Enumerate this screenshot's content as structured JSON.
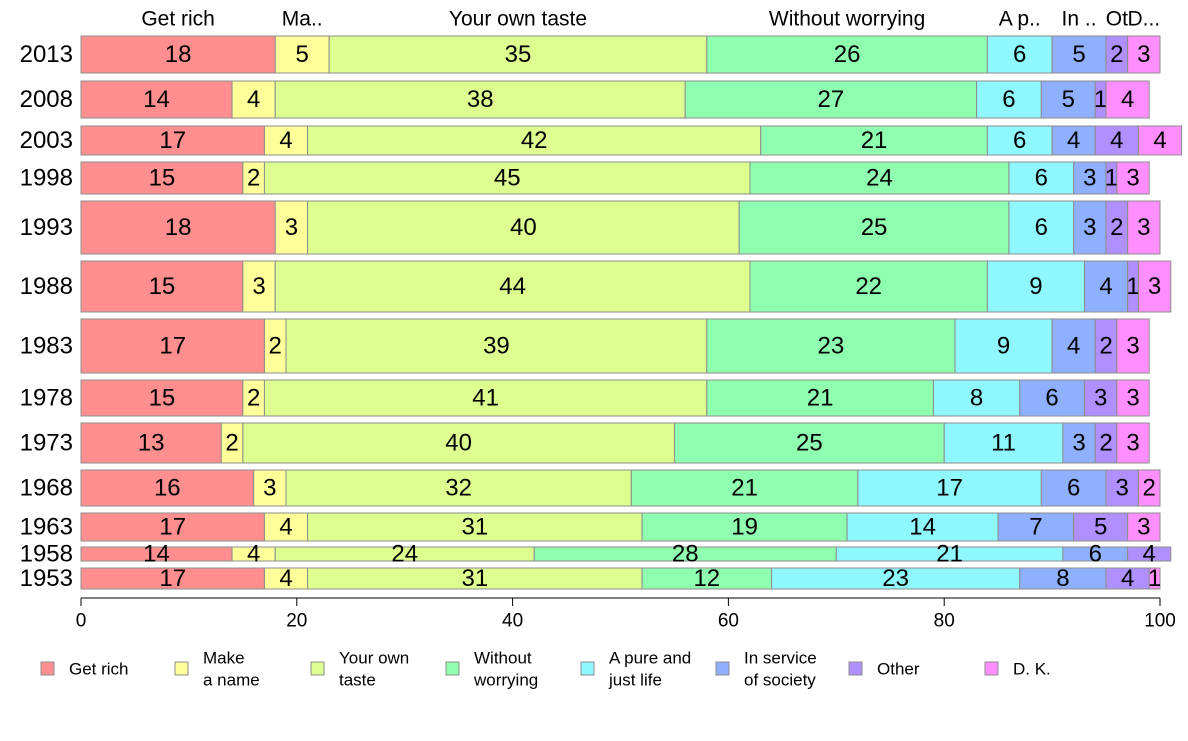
{
  "chart_data": {
    "type": "bar",
    "orientation": "horizontal",
    "stacked": true,
    "categories": [
      "2013",
      "2008",
      "2003",
      "1998",
      "1993",
      "1988",
      "1983",
      "1978",
      "1973",
      "1968",
      "1963",
      "1958",
      "1953"
    ],
    "top_labels": [
      "Get rich",
      "Ma..",
      "Your own taste",
      "Without worrying",
      "A p..",
      "In ..",
      "Ot",
      "D..."
    ],
    "xlim": [
      0,
      100
    ],
    "xticks": [
      "0",
      "20",
      "40",
      "60",
      "80",
      "100"
    ],
    "legend_placement": "bottom",
    "series": [
      {
        "name": "Get rich",
        "legend": [
          "Get rich"
        ],
        "color": "#ff8f8f",
        "values": [
          18,
          14,
          17,
          15,
          18,
          15,
          17,
          15,
          13,
          16,
          17,
          14,
          17
        ]
      },
      {
        "name": "Make a name",
        "legend": [
          "Make",
          "a name"
        ],
        "color": "#ffff99",
        "values": [
          5,
          4,
          4,
          2,
          3,
          3,
          2,
          2,
          2,
          3,
          4,
          4,
          4
        ]
      },
      {
        "name": "Your own taste",
        "legend": [
          "Your own",
          "taste"
        ],
        "color": "#ddff8f",
        "values": [
          35,
          38,
          42,
          45,
          40,
          44,
          39,
          41,
          40,
          32,
          31,
          24,
          31
        ]
      },
      {
        "name": "Without worrying",
        "legend": [
          "Without",
          "worrying"
        ],
        "color": "#8fffb0",
        "values": [
          26,
          27,
          21,
          24,
          25,
          22,
          23,
          21,
          25,
          21,
          19,
          28,
          12
        ]
      },
      {
        "name": "A pure and just life",
        "legend": [
          "A pure and",
          "just life"
        ],
        "color": "#8ff8ff",
        "values": [
          6,
          6,
          6,
          6,
          6,
          9,
          9,
          8,
          11,
          17,
          14,
          21,
          23
        ]
      },
      {
        "name": "In service of society",
        "legend": [
          "In service",
          "of society"
        ],
        "color": "#8fb0ff",
        "values": [
          5,
          5,
          4,
          3,
          3,
          4,
          4,
          6,
          3,
          6,
          7,
          6,
          8
        ]
      },
      {
        "name": "Other",
        "legend": [
          "Other"
        ],
        "color": "#b08fff",
        "values": [
          2,
          1,
          4,
          1,
          2,
          1,
          2,
          3,
          2,
          3,
          5,
          4,
          4
        ]
      },
      {
        "name": "D. K.",
        "legend": [
          "D. K."
        ],
        "color": "#ff8fff",
        "values": [
          3,
          4,
          4,
          3,
          3,
          3,
          3,
          3,
          3,
          2,
          3,
          0,
          1
        ]
      }
    ]
  }
}
